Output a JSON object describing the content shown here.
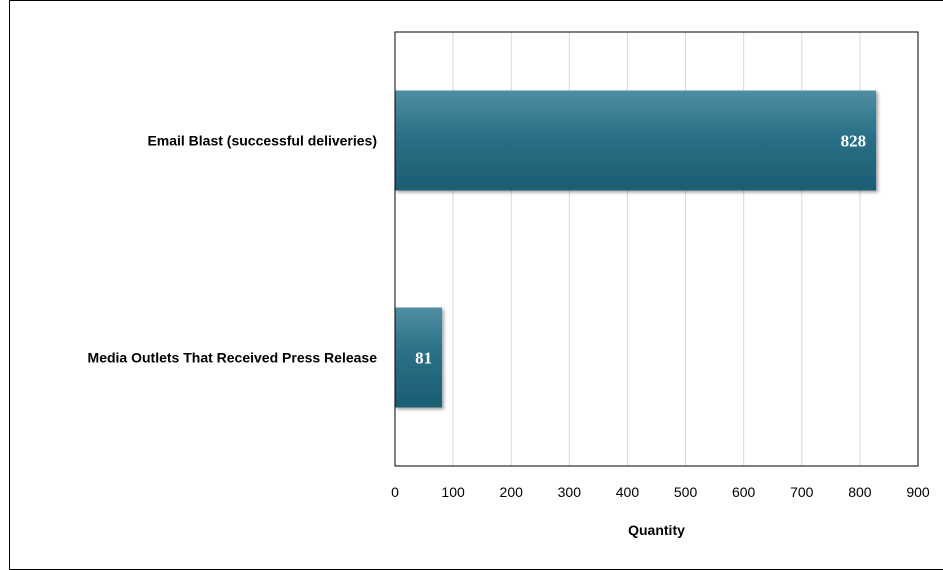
{
  "chart_data": {
    "type": "bar",
    "orientation": "horizontal",
    "categories": [
      "Email Blast (successful deliveries)",
      "Media Outlets That Received Press Release"
    ],
    "values": [
      828,
      81
    ],
    "data_labels": [
      "828",
      "81"
    ],
    "xlabel": "Quantity",
    "ylabel": "",
    "xlim": [
      0,
      900
    ],
    "x_ticks": [
      "0",
      "100",
      "200",
      "300",
      "400",
      "500",
      "600",
      "700",
      "800",
      "900"
    ],
    "grid": "vertical",
    "legend": "none",
    "colors": {
      "bar_top": "#4f8ea3",
      "bar_mid": "#2a7086",
      "bar_bottom": "#1c5d73",
      "grid": "#d9d9d9",
      "axis": "#000000"
    }
  }
}
